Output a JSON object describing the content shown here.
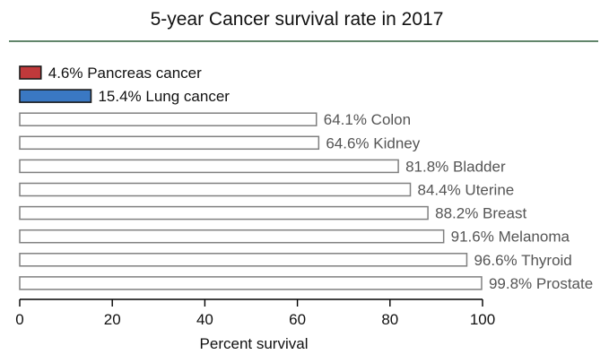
{
  "chart_data": {
    "type": "bar",
    "orientation": "horizontal",
    "title": "5-year Cancer survival rate in 2017",
    "xlabel": "Percent survival",
    "ylabel": "",
    "xlim": [
      0,
      100
    ],
    "x_ticks": [
      0,
      20,
      40,
      60,
      80,
      100
    ],
    "grid": false,
    "legend": "none",
    "categories": [
      "Pancreas cancer",
      "Lung cancer",
      "Colon",
      "Kidney",
      "Bladder",
      "Uterine",
      "Breast",
      "Melanoma",
      "Thyroid",
      "Prostate"
    ],
    "values": [
      4.6,
      15.4,
      64.1,
      64.6,
      81.8,
      84.4,
      88.2,
      91.6,
      96.6,
      99.8
    ],
    "labels": [
      "4.6% Pancreas cancer",
      "15.4% Lung cancer",
      "64.1% Colon",
      "64.6% Kidney",
      "81.8% Bladder",
      "84.4% Uterine",
      "88.2% Breast",
      "91.6% Melanoma",
      "96.6% Thyroid",
      "99.8% Prostate"
    ],
    "colors": {
      "highlight_pancreas": "#c0393b",
      "highlight_lung": "#3a78c3",
      "default_bar": "#ffffff",
      "highlight_bar_stroke": "#1a1a1a",
      "bar_stroke": "#808080",
      "title_rule": "#2e5e3a",
      "highlight_label": "#111111",
      "label": "#555555",
      "axis": "#000000"
    },
    "highlighted_indices": [
      0,
      1
    ]
  }
}
